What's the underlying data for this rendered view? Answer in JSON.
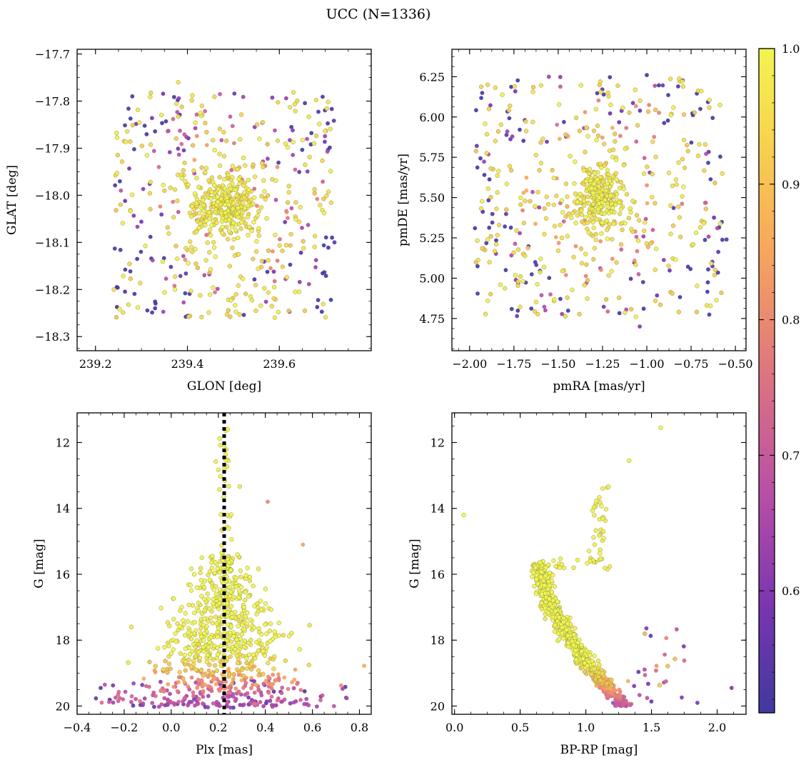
{
  "figure_title": "UCC (N=1336)",
  "colorbar": {
    "range": [
      0.51,
      1.0
    ],
    "ticks": [
      "0.6",
      "0.7",
      "0.8",
      "0.9",
      "1.0"
    ],
    "tick_values": [
      0.6,
      0.7,
      0.8,
      0.9,
      1.0
    ],
    "colormap": "plasma",
    "colors": [
      "#40399e",
      "#7a35b0",
      "#b84fa6",
      "#e0767e",
      "#f7a75c",
      "#f8d54e",
      "#f2f550"
    ]
  },
  "chart_data": [
    {
      "type": "scatter",
      "xlabel": "GLON [deg]",
      "ylabel": "GLAT [deg]",
      "xlim": [
        239.16,
        239.8
      ],
      "ylim": [
        -18.33,
        -17.69
      ],
      "xticks": [
        239.2,
        239.4,
        239.6
      ],
      "xtick_labels": [
        "239.2",
        "239.4",
        "239.6"
      ],
      "yticks": [
        -17.7,
        -17.8,
        -17.9,
        -18.0,
        -18.1,
        -18.2,
        -18.3
      ],
      "ytick_labels": [
        "−17.7",
        "−17.8",
        "−17.9",
        "−18.0",
        "−18.1",
        "−18.2",
        "−18.3"
      ],
      "distribution": "Cluster concentrated near GLON 239.48, GLAT -18.02; member probabilities 0.51-1.0 (high values near centre)",
      "sample_points": [
        {
          "x": 239.49,
          "y": -18.02,
          "p": 1.0
        },
        {
          "x": 239.28,
          "y": -17.79,
          "p": 0.52
        },
        {
          "x": 239.72,
          "y": -18.1,
          "p": 0.55
        },
        {
          "x": 239.38,
          "y": -17.76,
          "p": 0.96
        },
        {
          "x": 239.24,
          "y": -18.2,
          "p": 0.93
        },
        {
          "x": 239.59,
          "y": -18.26,
          "p": 0.97
        }
      ]
    },
    {
      "type": "scatter",
      "xlabel": "pmRA [mas/yr]",
      "ylabel": "pmDE [mas/yr]",
      "xlim": [
        -2.1,
        -0.44
      ],
      "ylim": [
        4.55,
        6.42
      ],
      "xticks": [
        -2.0,
        -1.75,
        -1.5,
        -1.25,
        -1.0,
        -0.75,
        -0.5
      ],
      "xtick_labels": [
        "−2.00",
        "−1.75",
        "−1.50",
        "−1.25",
        "−1.00",
        "−0.75",
        "−0.50"
      ],
      "yticks": [
        4.75,
        5.0,
        5.25,
        5.5,
        5.75,
        6.0,
        6.25
      ],
      "ytick_labels": [
        "4.75",
        "5.00",
        "5.25",
        "5.50",
        "5.75",
        "6.00",
        "6.25"
      ],
      "distribution": "Cluster concentrated near pmRA -1.27, pmDE 5.5",
      "sample_points": [
        {
          "x": -1.27,
          "y": 5.5,
          "p": 1.0
        },
        {
          "x": -1.0,
          "y": 6.26,
          "p": 0.52
        },
        {
          "x": -1.97,
          "y": 5.31,
          "p": 0.53
        },
        {
          "x": -1.04,
          "y": 4.7,
          "p": 0.6
        },
        {
          "x": -0.55,
          "y": 5.24,
          "p": 0.55
        }
      ]
    },
    {
      "type": "scatter",
      "xlabel": "Plx [mas]",
      "ylabel": "G [mag]",
      "xlim": [
        -0.4,
        0.85
      ],
      "ylim": [
        20.25,
        11.1
      ],
      "xticks": [
        -0.4,
        -0.2,
        0.0,
        0.2,
        0.4,
        0.6,
        0.8
      ],
      "xtick_labels": [
        "−0.4",
        "−0.2",
        "0.0",
        "0.2",
        "0.4",
        "0.6",
        "0.8"
      ],
      "yticks": [
        12,
        14,
        16,
        18,
        20
      ],
      "ytick_labels": [
        "12",
        "14",
        "16",
        "18",
        "20"
      ],
      "reference_line_x": 0.225,
      "distribution": "Funnel shape centred at Plx 0.225; spread widens toward faint magnitudes",
      "sample_points": [
        {
          "x": 0.24,
          "y": 11.6,
          "p": 1.0
        },
        {
          "x": 0.41,
          "y": 13.8,
          "p": 0.78
        },
        {
          "x": 0.56,
          "y": 15.1,
          "p": 0.82
        },
        {
          "x": -0.3,
          "y": 19.45,
          "p": 0.55
        },
        {
          "x": 0.74,
          "y": 19.42,
          "p": 0.55
        }
      ]
    },
    {
      "type": "scatter",
      "xlabel": "BP-RP [mag]",
      "ylabel": "G [mag]",
      "xlim": [
        -0.02,
        2.22
      ],
      "ylim": [
        20.25,
        11.1
      ],
      "xticks": [
        0.0,
        0.5,
        1.0,
        1.5,
        2.0
      ],
      "xtick_labels": [
        "0.0",
        "0.5",
        "1.0",
        "1.5",
        "2.0"
      ],
      "yticks": [
        12,
        14,
        16,
        18,
        20
      ],
      "ytick_labels": [
        "12",
        "14",
        "16",
        "18",
        "20"
      ],
      "distribution": "Main sequence from BP-RP 0.65 at G 15.6 curving to 1.3 at G 20; red giant branch rising to G 13.4 near BP-RP 1.1",
      "sample_points": [
        {
          "x": 1.57,
          "y": 11.55,
          "p": 1.0
        },
        {
          "x": 0.07,
          "y": 14.2,
          "p": 1.0
        },
        {
          "x": 1.33,
          "y": 12.55,
          "p": 1.0
        },
        {
          "x": 2.11,
          "y": 19.45,
          "p": 0.6
        },
        {
          "x": 1.85,
          "y": 19.9,
          "p": 0.6
        }
      ]
    }
  ]
}
